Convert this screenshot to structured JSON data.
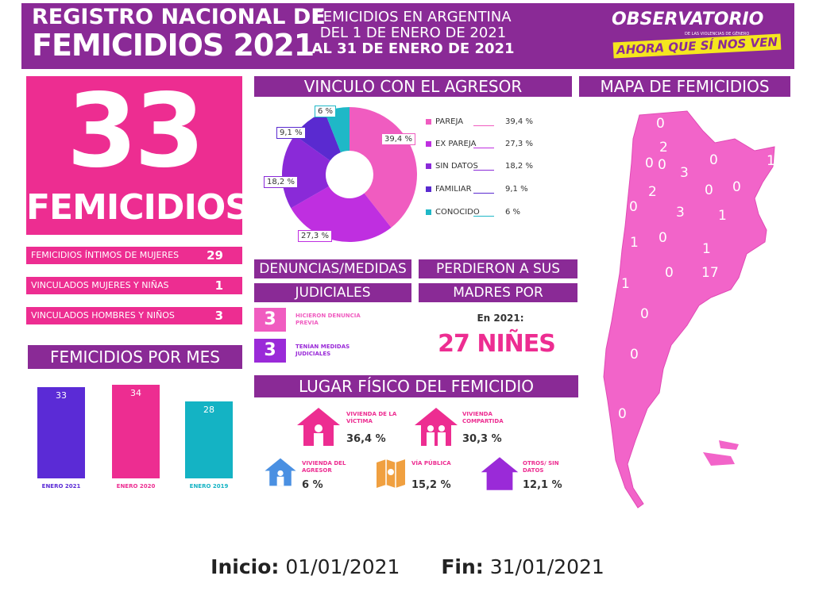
{
  "header": {
    "title_line1": "REGISTRO NACIONAL DE",
    "title_line2": "FEMICIDIOS 2021",
    "subtitle_line1": "FEMICIDIOS EN ARGENTINA",
    "subtitle_line2": "DEL 1 DE ENERO DE 2021",
    "subtitle_line3": "AL  31 DE ENERO DE 2021",
    "org_name": "OBSERVATORIO",
    "org_small": "DE LAS VIOLENCIAS DE GÉNERO",
    "org_tagline": "AHORA QUE SÍ NOS VEN"
  },
  "total": {
    "number": "33",
    "label": "FEMICIDIOS"
  },
  "breakdown": [
    {
      "label": "FEMICIDIOS ÍNTIMOS DE MUJERES",
      "value": "29"
    },
    {
      "label": "VINCULADOS MUJERES Y NIÑAS",
      "value": "1"
    },
    {
      "label": "VINCULADOS HOMBRES Y NIÑOS",
      "value": "3"
    }
  ],
  "monthly": {
    "title": "FEMICIDIOS POR MES",
    "chart_data": {
      "type": "bar",
      "categories": [
        "ENERO 2021",
        "ENERO 2020",
        "ENERO 2019"
      ],
      "values": [
        33,
        34,
        28
      ],
      "colors": [
        "#5b2bd6",
        "#ed2d91",
        "#14b3c4"
      ],
      "title": "FEMICIDIOS POR MES"
    }
  },
  "vinculo": {
    "title": "VINCULO CON EL AGRESOR",
    "chart_data": {
      "type": "pie",
      "categories": [
        "PAREJA",
        "EX PAREJA",
        "SIN DATOS",
        "FAMILIAR",
        "CONOCIDO"
      ],
      "values": [
        39.4,
        27.3,
        18.2,
        9.1,
        6
      ],
      "labels": [
        "39,4 %",
        "27,3 %",
        "18,2 %",
        "9,1 %",
        "6 %"
      ],
      "colors": [
        "#f05cc0",
        "#bf2fe0",
        "#8a2ad8",
        "#5a2ad0",
        "#1fb8c7"
      ],
      "title": "VINCULO CON EL AGRESOR"
    }
  },
  "denuncias": {
    "title_line1": "DENUNCIAS/MEDIDAS",
    "title_line2": "JUDICIALES",
    "items": [
      {
        "value": "3",
        "label": "HICIERON DENUNCIA PREVIA",
        "color": "#f05cc0"
      },
      {
        "value": "3",
        "label": "TENÍAN MEDIDAS JUDICIALES",
        "color": "#9a2ad8"
      }
    ]
  },
  "madres": {
    "title_line1": "PERDIERON A SUS",
    "title_line2": "MADRES POR FEMICIDIO",
    "year_label": "En 2021:",
    "count_label": "27 NIÑES"
  },
  "lugar": {
    "title": "LUGAR FÍSICO DEL FEMICIDIO",
    "items": [
      {
        "label": "VIVIENDA DE LA VÍCTIMA",
        "pct": "36,4 %",
        "icon": "house-person-icon",
        "color": "#ed2d91"
      },
      {
        "label": "VIVIENDA COMPARTIDA",
        "pct": "30,3 %",
        "icon": "house-couple-icon",
        "color": "#ed2d91"
      },
      {
        "label": "VIVIENDA DEL AGRESOR",
        "pct": "6 %",
        "icon": "house-man-icon",
        "color": "#4a90e2"
      },
      {
        "label": "VÍA PÚBLICA",
        "pct": "15,2 %",
        "icon": "map-icon",
        "color": "#f0a040"
      },
      {
        "label": "OTROS/ SIN DATOS",
        "pct": "12,1 %",
        "icon": "house-empty-icon",
        "color": "#9a2ad8"
      }
    ]
  },
  "mapa": {
    "title": "MAPA DE FEMICIDIOS",
    "province_counts": [
      "0",
      "2",
      "0",
      "0",
      "3",
      "0",
      "1",
      "0",
      "2",
      "0",
      "0",
      "3",
      "1",
      "0",
      "1",
      "0",
      "17",
      "1",
      "1",
      "0",
      "0",
      "0"
    ]
  },
  "footer": {
    "start_label": "Inicio:",
    "start_value": "01/01/2021",
    "end_label": "Fin:",
    "end_value": "31/01/2021"
  }
}
